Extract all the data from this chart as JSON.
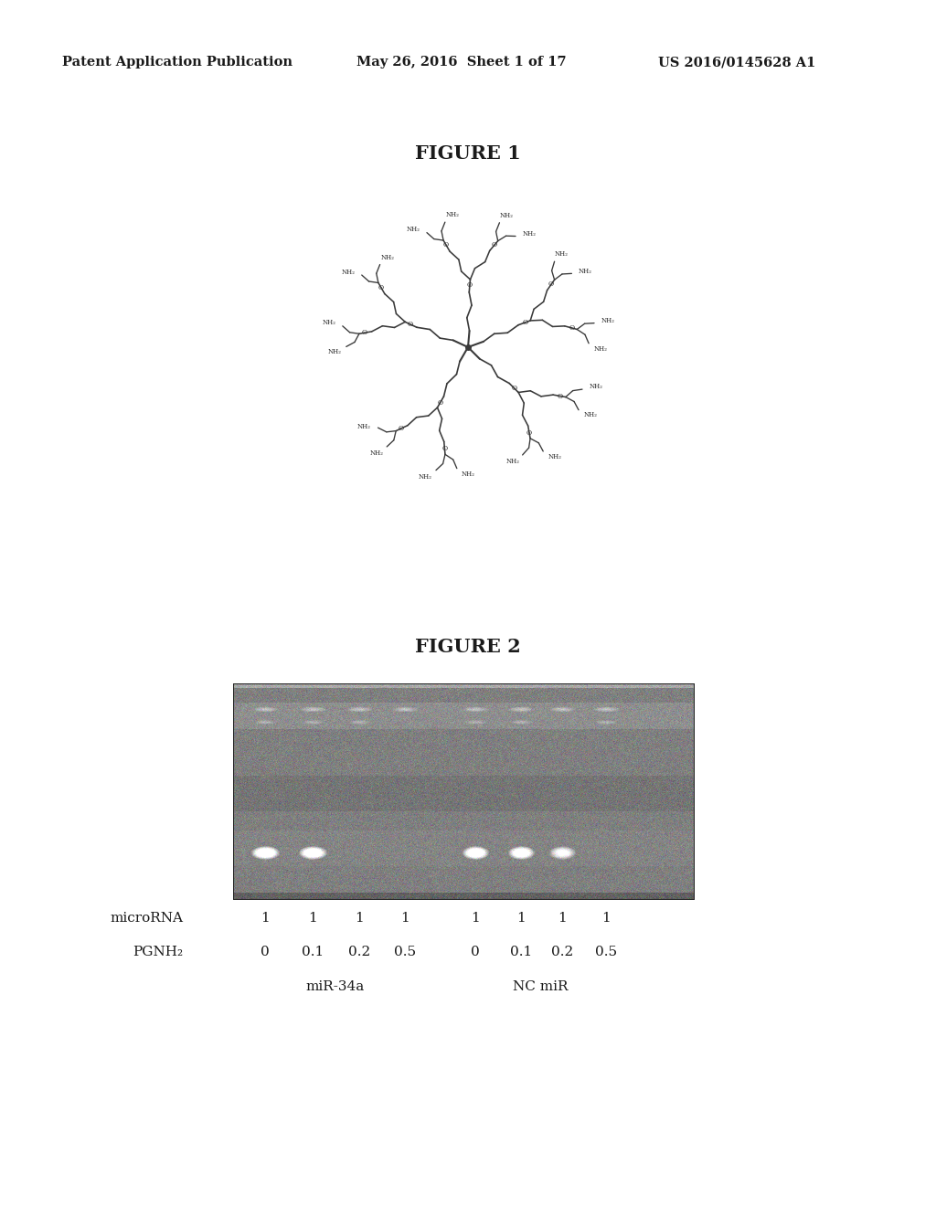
{
  "header_left": "Patent Application Publication",
  "header_middle": "May 26, 2016  Sheet 1 of 17",
  "header_right": "US 2016/0145628 A1",
  "figure1_title": "FIGURE 1",
  "figure2_title": "FIGURE 2",
  "mirna_label": "microRNA",
  "pgnh2_label": "PGNH₂",
  "mirna_values_left": [
    "1",
    "1",
    "1",
    "1"
  ],
  "mirna_values_right": [
    "1",
    "1",
    "1",
    "1"
  ],
  "pgnh2_values_left": [
    "0",
    "0.1",
    "0.2",
    "0.5"
  ],
  "pgnh2_values_right": [
    "0",
    "0.1",
    "0.2",
    "0.5"
  ],
  "mir34a_label": "miR-34a",
  "nc_mir_label": "NC miR",
  "background_color": "#ffffff",
  "text_color": "#1a1a1a",
  "gel_base_gray": 128,
  "gel_noise_std": 12
}
